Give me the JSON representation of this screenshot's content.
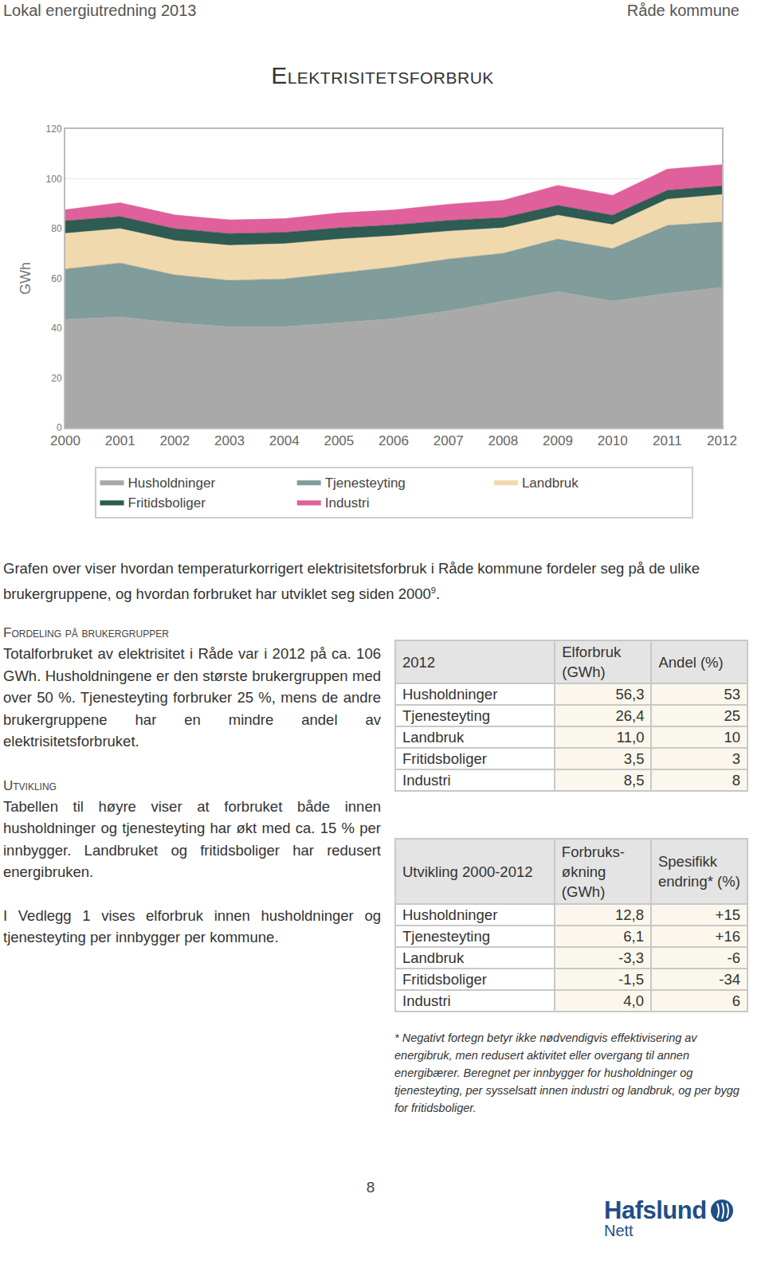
{
  "header": {
    "left": "Lokal energiutredning 2013",
    "right": "Råde kommune"
  },
  "title": "Elektrisitetsforbruk",
  "chart_data": {
    "type": "area",
    "stacked": true,
    "x": [
      2000,
      2001,
      2002,
      2003,
      2004,
      2005,
      2006,
      2007,
      2008,
      2009,
      2010,
      2011,
      2012
    ],
    "xlim": [
      2000,
      2012
    ],
    "xticks": [
      2000,
      2001,
      2002,
      2003,
      2004,
      2005,
      2006,
      2007,
      2008,
      2009,
      2010,
      2011,
      2012
    ],
    "ylim": [
      0,
      120
    ],
    "yticks": [
      0,
      20,
      40,
      60,
      80,
      100,
      120
    ],
    "y_label": "GWh",
    "grid": true,
    "legend": "bottom",
    "series": [
      {
        "name": "Husholdninger",
        "color": "#a9a9a9",
        "values": [
          43.5,
          44.5,
          42.2,
          40.6,
          40.6,
          42.2,
          43.8,
          47.0,
          50.9,
          54.7,
          50.9,
          54.0,
          56.3
        ]
      },
      {
        "name": "Tjenesteyting",
        "color": "#809c9b",
        "values": [
          20.3,
          21.7,
          19.2,
          18.6,
          19.2,
          19.9,
          20.8,
          20.8,
          19.2,
          21.1,
          21.1,
          27.3,
          26.4
        ]
      },
      {
        "name": "Landbruk",
        "color": "#f1d9ae",
        "values": [
          14.3,
          13.8,
          13.8,
          14.1,
          14.1,
          13.7,
          12.5,
          11.2,
          10.2,
          9.6,
          9.6,
          10.5,
          11.0
        ]
      },
      {
        "name": "Fritidsboliger",
        "color": "#2e5b52",
        "values": [
          5.0,
          4.9,
          4.8,
          4.7,
          4.6,
          4.5,
          4.4,
          4.3,
          4.1,
          4.0,
          3.8,
          3.6,
          3.5
        ]
      },
      {
        "name": "Industri",
        "color": "#e0609b",
        "values": [
          4.5,
          5.5,
          5.5,
          5.5,
          5.5,
          6.0,
          6.0,
          6.5,
          7.0,
          8.0,
          8.0,
          8.5,
          8.5
        ]
      }
    ]
  },
  "intro": {
    "text": "Grafen over viser hvordan temperaturkorrigert elektrisitetsforbruk i Råde kommune fordeler seg på de ulike brukergruppene, og hvordan forbruket har utviklet seg siden 2000",
    "footnote_ref": "9",
    "end": "."
  },
  "sections": [
    {
      "heading": "Fordeling på brukergrupper",
      "text": "Totalforbruket av elektrisitet i Råde var i 2012 på ca. 106 GWh. Husholdningene er den største brukergruppen med over 50 %. Tjenesteyting forbruker 25 %, mens de andre brukergruppene har en mindre andel av elektrisitetsforbruket."
    },
    {
      "heading": "Utvikling",
      "text": "Tabellen til høyre viser at forbruket både innen husholdninger og tjenesteyting har økt med ca. 15 % per innbygger. Landbruket og fritidsboliger har redusert energibruken."
    },
    {
      "heading": null,
      "text": "I Vedlegg 1 vises elforbruk innen husholdninger og tjenesteyting per innbygger per kommune."
    }
  ],
  "tables": [
    {
      "header": [
        "2012",
        "Elforbruk (GWh)",
        "Andel (%)"
      ],
      "rows": [
        [
          "Husholdninger",
          "56,3",
          "53"
        ],
        [
          "Tjenesteyting",
          "26,4",
          "25"
        ],
        [
          "Landbruk",
          "11,0",
          "10"
        ],
        [
          "Fritidsboliger",
          "3,5",
          "3"
        ],
        [
          "Industri",
          "8,5",
          "8"
        ]
      ]
    },
    {
      "header": [
        "Utvikling 2000-2012",
        "Forbruks-økning (GWh)",
        "Spesifikk endring* (%)"
      ],
      "rows": [
        [
          "Husholdninger",
          "12,8",
          "+15"
        ],
        [
          "Tjenesteyting",
          "6,1",
          "+16"
        ],
        [
          "Landbruk",
          "-3,3",
          "-6"
        ],
        [
          "Fritidsboliger",
          "-1,5",
          "-34"
        ],
        [
          "Industri",
          "4,0",
          "6"
        ]
      ]
    }
  ],
  "table_note": "* Negativt fortegn betyr ikke nødvendigvis effektivisering av energibruk, men redusert aktivitet eller overgang til annen energibærer. Beregnet per innbygger for husholdninger og tjenesteyting, per sysselsatt innen industri og landbruk, og per bygg for fritidsboliger.",
  "page_number": "8",
  "logo": {
    "name": "Hafslund",
    "sub": "Nett"
  }
}
